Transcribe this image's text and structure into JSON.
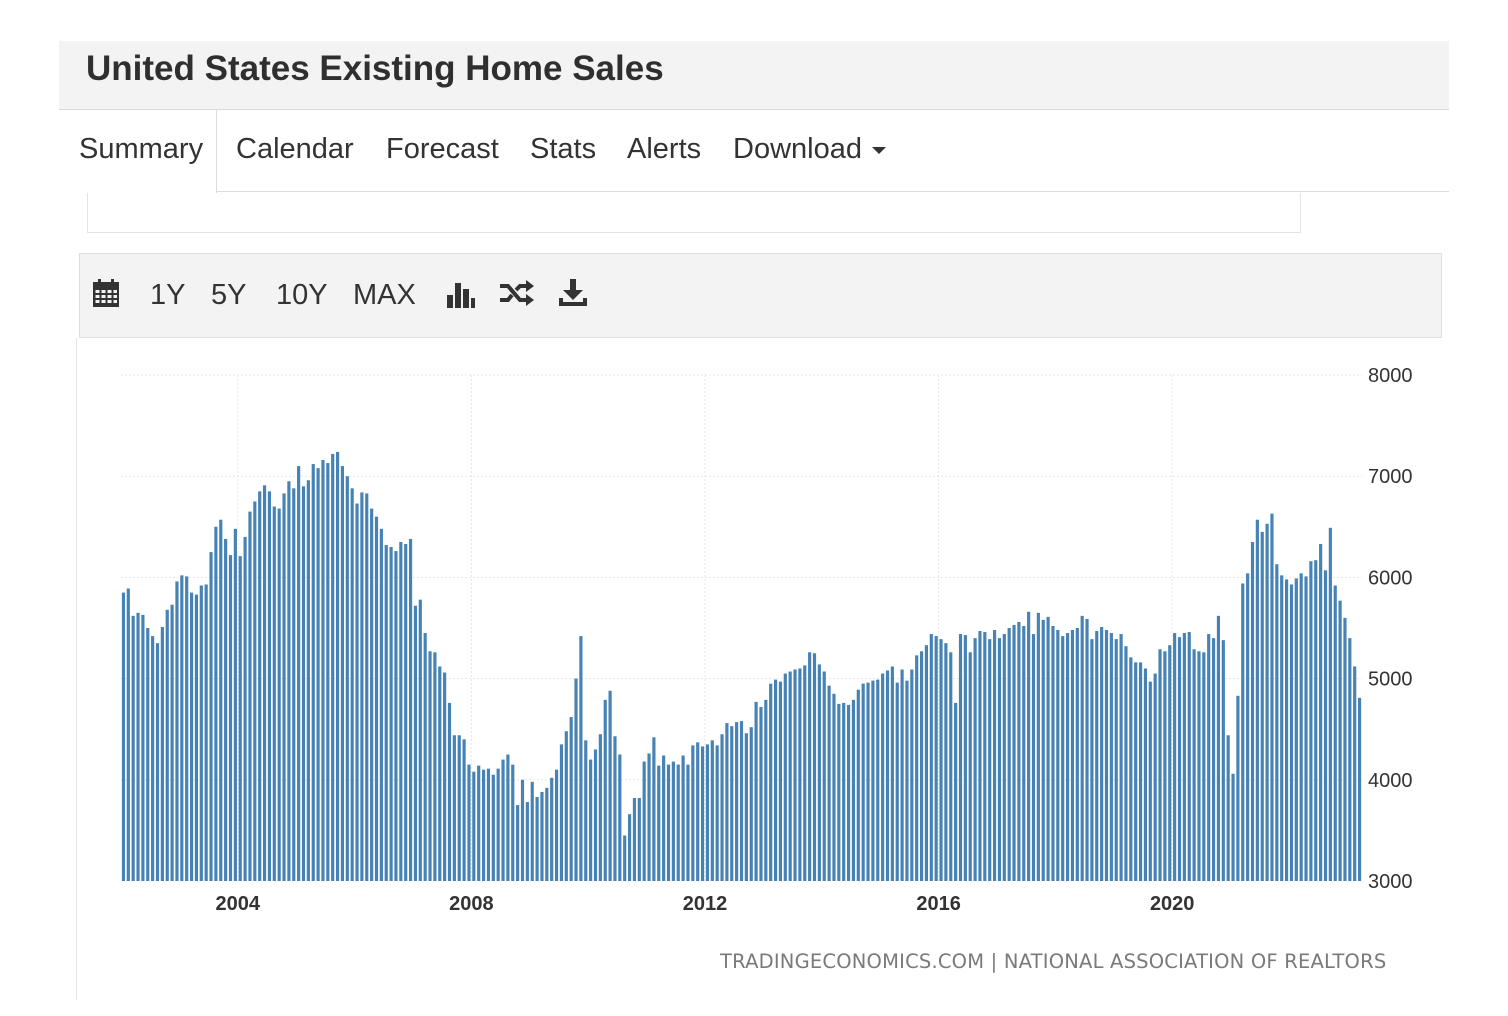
{
  "header": {
    "title": "United States Existing Home Sales"
  },
  "tabs": [
    {
      "label": "Summary",
      "active": true
    },
    {
      "label": "Calendar"
    },
    {
      "label": "Forecast"
    },
    {
      "label": "Stats"
    },
    {
      "label": "Alerts"
    },
    {
      "label": "Download"
    }
  ],
  "toolbar": {
    "calendar_icon": "calendar-icon",
    "ranges": [
      "1Y",
      "5Y",
      "10Y",
      "MAX"
    ],
    "chart_type_icon": "bar-chart-icon",
    "compare_icon": "shuffle-icon",
    "download_icon": "download-icon"
  },
  "colors": {
    "bar": "#4682b4",
    "grid": "#e6e6e6",
    "header_bg": "#f3f3f3"
  },
  "source": "TRADINGECONOMICS.COM | NATIONAL ASSOCIATION OF REALTORS",
  "chart_data": {
    "type": "bar",
    "title": "",
    "xlabel": "",
    "ylabel": "",
    "x_start": "2002-01",
    "frequency": "monthly",
    "x_ticks": [
      "2004",
      "2008",
      "2012",
      "2016",
      "2020"
    ],
    "ylim": [
      3000,
      8000
    ],
    "y_ticks": [
      3000,
      4000,
      5000,
      6000,
      7000,
      8000
    ],
    "y_axis_position": "right",
    "grid": true,
    "values": [
      5850,
      5890,
      5620,
      5650,
      5630,
      5500,
      5420,
      5350,
      5510,
      5680,
      5730,
      5960,
      6020,
      6010,
      5850,
      5830,
      5920,
      5930,
      6250,
      6500,
      6570,
      6380,
      6220,
      6480,
      6210,
      6400,
      6650,
      6750,
      6850,
      6910,
      6850,
      6700,
      6680,
      6830,
      6950,
      6880,
      7100,
      6900,
      6960,
      7120,
      7080,
      7160,
      7130,
      7220,
      7240,
      7100,
      7000,
      6880,
      6730,
      6840,
      6830,
      6680,
      6600,
      6480,
      6320,
      6300,
      6260,
      6350,
      6330,
      6380,
      5720,
      5780,
      5450,
      5270,
      5260,
      5120,
      5060,
      4760,
      4440,
      4440,
      4400,
      4150,
      4080,
      4140,
      4100,
      4110,
      4050,
      4110,
      4200,
      4250,
      4150,
      3750,
      4000,
      3780,
      3980,
      3830,
      3880,
      3920,
      4020,
      4100,
      4350,
      4480,
      4620,
      5000,
      5420,
      4390,
      4200,
      4300,
      4450,
      4790,
      4880,
      4430,
      4250,
      3450,
      3660,
      3820,
      3820,
      4180,
      4260,
      4420,
      4140,
      4240,
      4150,
      4180,
      4150,
      4240,
      4150,
      4340,
      4370,
      4330,
      4350,
      4390,
      4340,
      4450,
      4560,
      4530,
      4570,
      4580,
      4460,
      4520,
      4770,
      4720,
      4790,
      4950,
      4990,
      4970,
      5050,
      5070,
      5090,
      5100,
      5130,
      5260,
      5250,
      5140,
      5070,
      4930,
      4850,
      4750,
      4760,
      4740,
      4790,
      4890,
      4950,
      4960,
      4980,
      4990,
      5050,
      5080,
      5120,
      4960,
      5090,
      4980,
      5090,
      5230,
      5270,
      5330,
      5440,
      5420,
      5390,
      5350,
      5260,
      4760,
      5440,
      5430,
      5260,
      5400,
      5470,
      5460,
      5390,
      5480,
      5400,
      5440,
      5500,
      5530,
      5560,
      5520,
      5660,
      5440,
      5650,
      5580,
      5610,
      5520,
      5480,
      5420,
      5450,
      5480,
      5500,
      5620,
      5590,
      5390,
      5470,
      5510,
      5480,
      5450,
      5390,
      5440,
      5320,
      5210,
      5160,
      5160,
      5100,
      4970,
      5050,
      5290,
      5270,
      5330,
      5450,
      5410,
      5450,
      5460,
      5290,
      5270,
      5260,
      5440,
      5400,
      5620,
      5380,
      4440,
      4060,
      4830,
      5940,
      6040,
      6350,
      6570,
      6450,
      6530,
      6630,
      6130,
      6020,
      5980,
      5930,
      5990,
      6040,
      6010,
      6160,
      6170,
      6330,
      6070,
      6490,
      5920,
      5770,
      5600,
      5400,
      5120,
      4810
    ]
  }
}
